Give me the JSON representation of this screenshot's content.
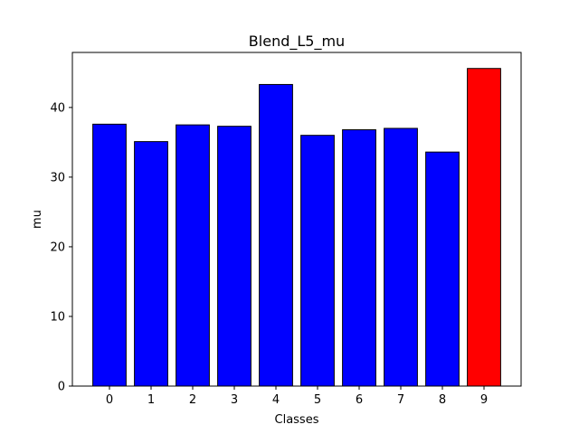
{
  "chart_data": {
    "type": "bar",
    "title": "Blend_L5_mu",
    "xlabel": "Classes",
    "ylabel": "mu",
    "categories": [
      "0",
      "1",
      "2",
      "3",
      "4",
      "5",
      "6",
      "7",
      "8",
      "9"
    ],
    "values": [
      37.6,
      35.1,
      37.5,
      37.3,
      43.3,
      36.0,
      36.8,
      37.0,
      33.6,
      45.6
    ],
    "bar_colors": [
      "#0000ff",
      "#0000ff",
      "#0000ff",
      "#0000ff",
      "#0000ff",
      "#0000ff",
      "#0000ff",
      "#0000ff",
      "#0000ff",
      "#ff0000"
    ],
    "edge_color": "#000000",
    "ylim": [
      0,
      47.9
    ],
    "yticks": [
      0,
      10,
      20,
      30,
      40
    ],
    "ytick_labels": [
      "0",
      "10",
      "20",
      "30",
      "40"
    ],
    "grid": false,
    "legend": "none"
  }
}
